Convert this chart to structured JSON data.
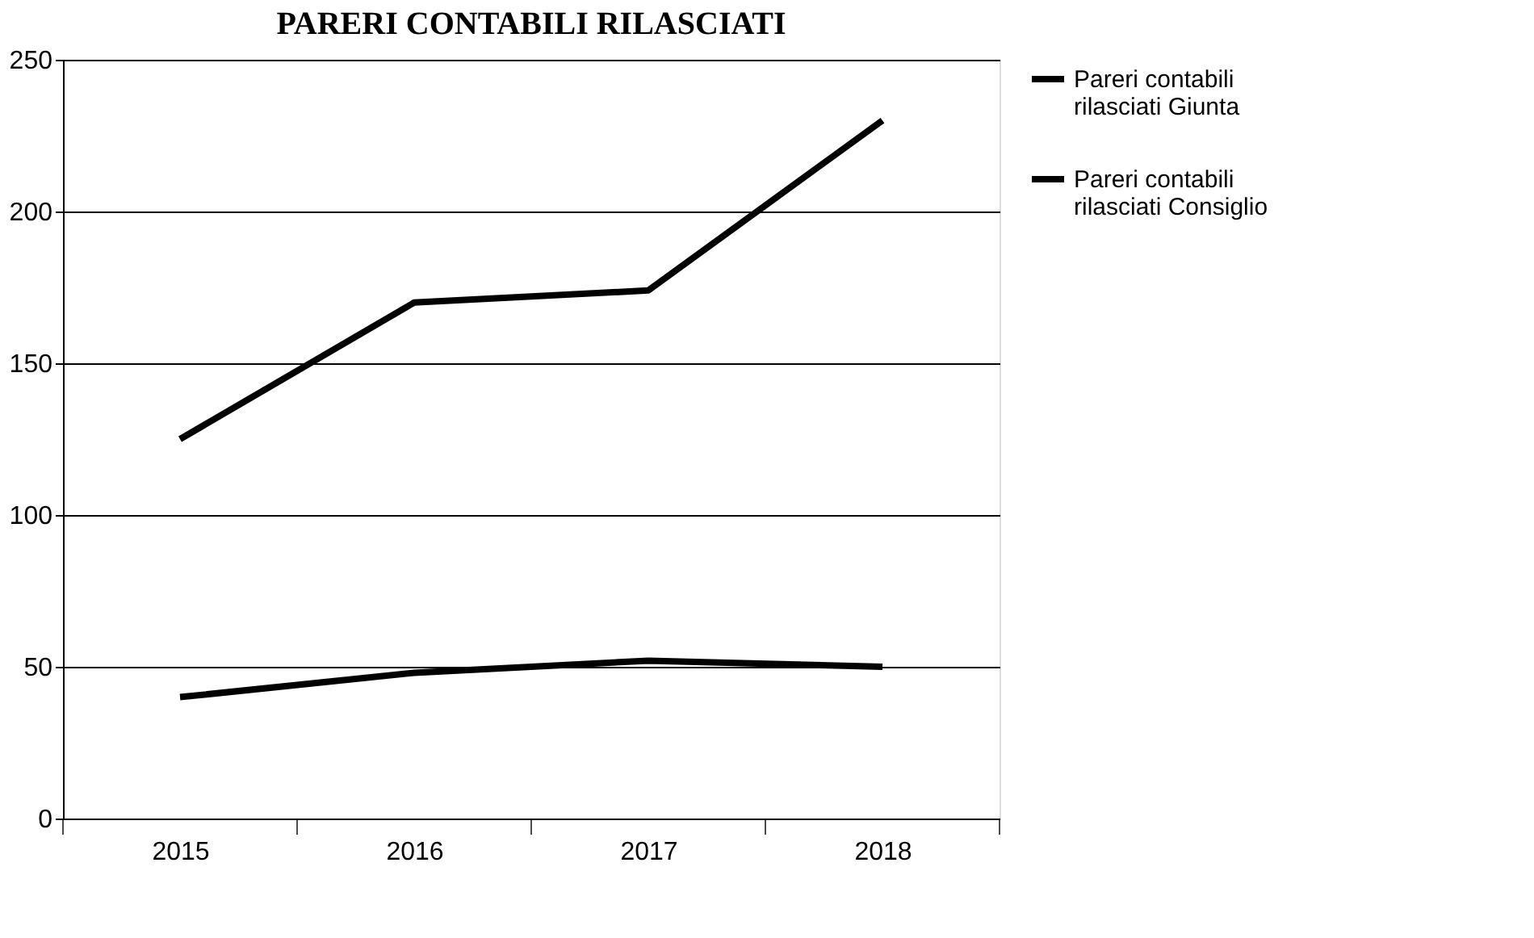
{
  "chart_data": {
    "type": "line",
    "title": "PARERI CONTABILI RILASCIATI",
    "categories": [
      "2015",
      "2016",
      "2017",
      "2018"
    ],
    "series": [
      {
        "name": "Pareri contabili rilasciati Giunta",
        "color": "#000000",
        "values": [
          125,
          170,
          174,
          230
        ]
      },
      {
        "name": "Pareri contabili rilasciati Consiglio",
        "color": "#000000",
        "values": [
          40,
          48,
          52,
          50
        ]
      }
    ],
    "ylim": [
      0,
      250
    ],
    "yticks": [
      0,
      50,
      100,
      150,
      200,
      250
    ],
    "grid": "y",
    "legend": "right",
    "marker": "none",
    "line_style": "solid"
  }
}
